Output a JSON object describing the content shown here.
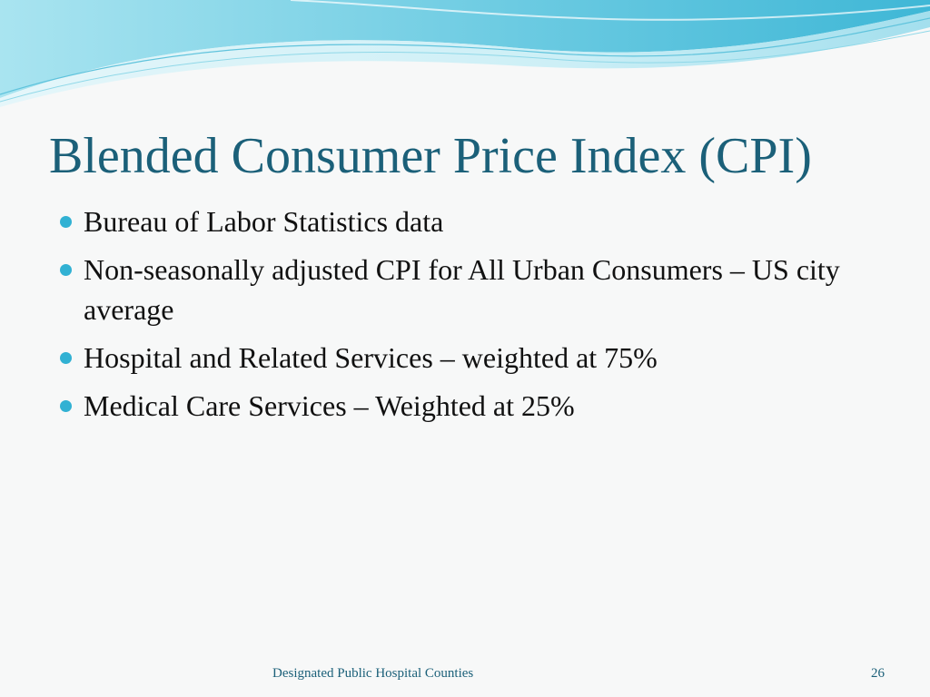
{
  "slide": {
    "title": "Blended Consumer Price Index (CPI)",
    "bullets": [
      "Bureau of Labor Statistics data",
      "Non-seasonally adjusted CPI for All Urban Consumers – US city average",
      "Hospital and Related Services – weighted at 75%",
      "Medical Care Services – Weighted at 25%"
    ],
    "footer": "Designated Public Hospital Counties",
    "page_number": "26"
  },
  "colors": {
    "title": "#1b6079",
    "bullet": "#31b1d3",
    "background": "#f7f8f8",
    "wave_light": "#bfe9f2",
    "wave_mid": "#7fd3e6",
    "wave_dark": "#3fb7d6"
  },
  "icons": {
    "bullet": "filled-circle"
  }
}
